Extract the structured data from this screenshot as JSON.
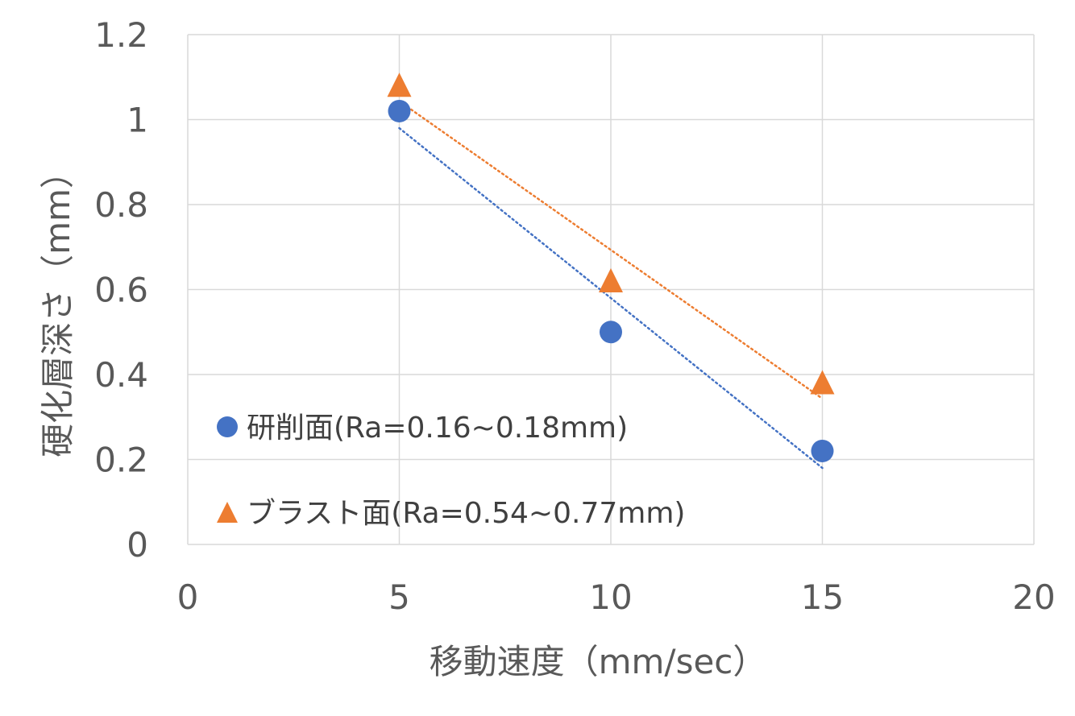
{
  "chart_data": {
    "type": "scatter",
    "xlabel": "移動速度（mm/sec）",
    "ylabel": "硬化層深さ（mm）",
    "xlim": [
      0,
      20
    ],
    "ylim": [
      0,
      1.2
    ],
    "x_ticks": [
      "0",
      "5",
      "10",
      "15",
      "20"
    ],
    "y_ticks": [
      "0",
      "0.2",
      "0.4",
      "0.6",
      "0.8",
      "1",
      "1.2"
    ],
    "grid": true,
    "legend_position": "left, inside plot",
    "series": [
      {
        "name": "研削面(Ra=0.16~0.18mm)",
        "marker": "circle",
        "color": "#4472C4",
        "x": [
          5,
          10,
          15
        ],
        "y": [
          1.02,
          0.5,
          0.22
        ],
        "trendline": "linear"
      },
      {
        "name": "ブラスト面(Ra=0.54~0.77mm)",
        "marker": "triangle",
        "color": "#ED7D31",
        "x": [
          5,
          10,
          15
        ],
        "y": [
          1.08,
          0.62,
          0.38
        ],
        "trendline": "linear"
      }
    ]
  }
}
